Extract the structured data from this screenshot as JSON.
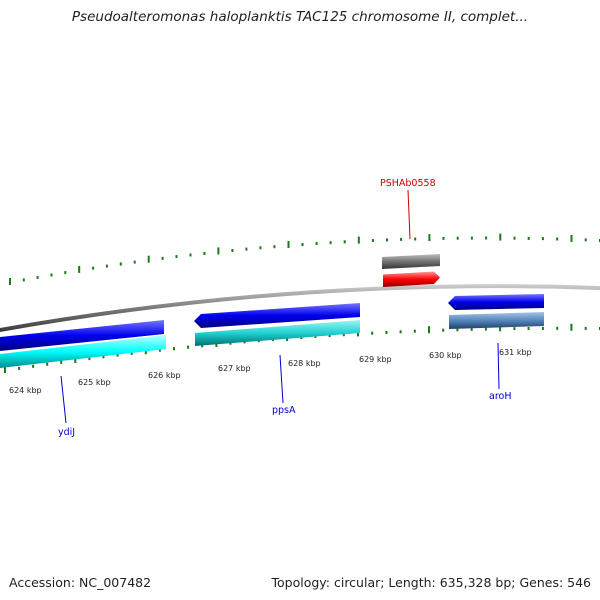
{
  "header": {
    "title": "Pseudoalteromonas haloplanktis TAC125 chromosome II, complet..."
  },
  "footer": {
    "accession": "Accession: NC_007482",
    "summary": "Topology: circular; Length: 635,328 bp; Genes: 546"
  },
  "ticks": [
    {
      "label": "624 kbp"
    },
    {
      "label": "625 kbp"
    },
    {
      "label": "626 kbp"
    },
    {
      "label": "627 kbp"
    },
    {
      "label": "628 kbp"
    },
    {
      "label": "629 kbp"
    },
    {
      "label": "630 kbp"
    },
    {
      "label": "631 kbp"
    }
  ],
  "gene_labels": [
    {
      "name": "PSHAb0558",
      "color": "#cc0000"
    },
    {
      "name": "ydiJ",
      "color": "#0000cc"
    },
    {
      "name": "ppsA",
      "color": "#0000cc"
    },
    {
      "name": "aroH",
      "color": "#0000cc"
    }
  ],
  "colors": {
    "backbone": "#808080",
    "tick_dots": "#1a7a1a",
    "cds_forward": "#0000ee",
    "cds_reverse_top": "#00ffff",
    "cds_reverse_bottom": "#00cccc",
    "gene_gray": "#707070",
    "gene_red": "#ff0000",
    "steel": "#4f86bf"
  }
}
